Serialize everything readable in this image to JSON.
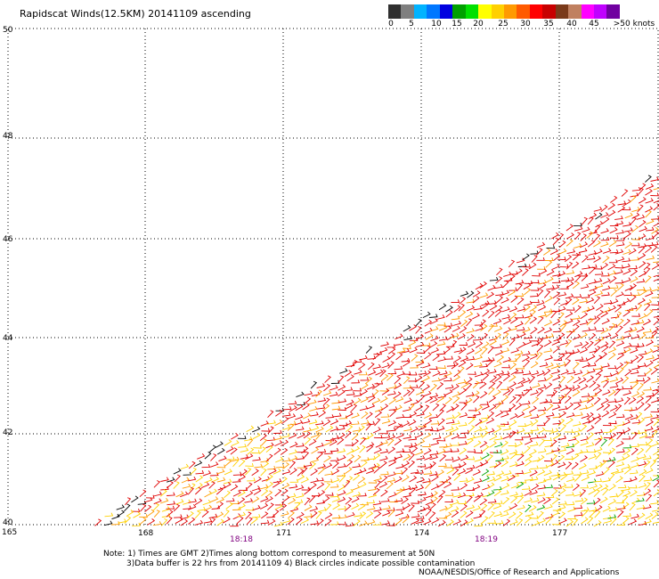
{
  "title": "Rapidscat Winds(12.5KM) 20141109 ascending",
  "colorbar": {
    "colors": [
      "#2f2f2f",
      "#7f7f7f",
      "#00b3ff",
      "#0077ff",
      "#0000e0",
      "#00a000",
      "#00e000",
      "#ffff00",
      "#ffd000",
      "#ff9a00",
      "#ff5a00",
      "#ff0000",
      "#c80000",
      "#7a3a1a",
      "#c08060",
      "#ff00ff",
      "#c000ff",
      "#7000a0"
    ],
    "labels": [
      "0",
      "5",
      "10",
      "15",
      "20",
      "25",
      "30",
      "35",
      "40",
      "45",
      ">50 knots"
    ]
  },
  "map": {
    "lat_labels": [
      "50",
      "48",
      "46",
      "44",
      "42",
      "40"
    ],
    "lon_labels": [
      "165",
      "168",
      "171",
      "174",
      "177"
    ],
    "time_labels": [
      "18:18",
      "18:19"
    ],
    "barb_colors": {
      "calm": "#00a000",
      "moderate": "#ffd000",
      "strong": "#ff9a00",
      "gale": "#e00000",
      "contaminated": "#000000"
    }
  },
  "notes": {
    "line1": "Note: 1) Times are GMT 2)Times along bottom correspond to measurement at 50N",
    "line2": "3)Data buffer is 22 hrs from 20141109 4) Black circles indicate possible contamination"
  },
  "credit": "NOAA/NESDIS/Office of Research and Applications"
}
